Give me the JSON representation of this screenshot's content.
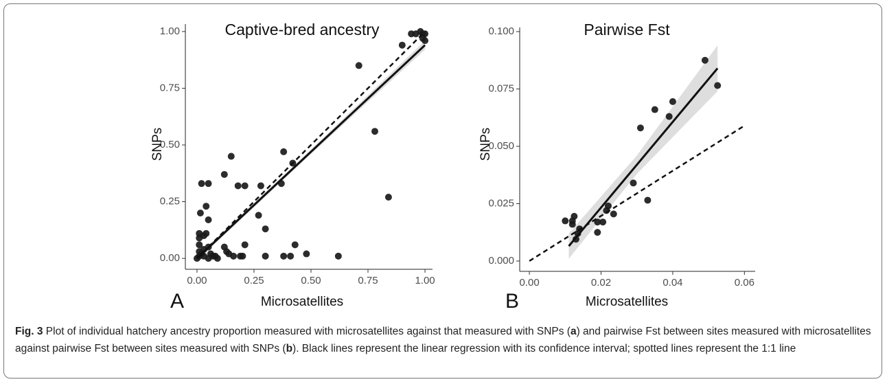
{
  "chart_data": [
    {
      "type": "scatter",
      "title": "Captive-bred ancestry",
      "panel": "A",
      "xlabel": "Microsatellites",
      "ylabel": "SNPs",
      "color": "#1a1a1a",
      "x": [
        0.0,
        0.01,
        0.01,
        0.01,
        0.01,
        0.015,
        0.02,
        0.03,
        0.03,
        0.04,
        0.04,
        0.05,
        0.05,
        0.05,
        0.06,
        0.07,
        0.08,
        0.12,
        0.12,
        0.14,
        0.15,
        0.16,
        0.18,
        0.19,
        0.21,
        0.21,
        0.27,
        0.28,
        0.3,
        0.3,
        0.37,
        0.38,
        0.38,
        0.41,
        0.42,
        0.43,
        0.48,
        0.62,
        0.71,
        0.78,
        0.84,
        0.9,
        0.94,
        0.96,
        0.98,
        0.99,
        1.0,
        0.99,
        1.0,
        0.02,
        0.01,
        0.03,
        0.05,
        0.09,
        0.13,
        0.2
      ],
      "y": [
        0.0,
        0.03,
        0.06,
        0.09,
        0.11,
        0.2,
        0.33,
        0.1,
        0.01,
        0.23,
        0.11,
        0.17,
        0.33,
        0.05,
        0.02,
        0.01,
        0.01,
        0.37,
        0.05,
        0.02,
        0.45,
        0.01,
        0.32,
        0.01,
        0.32,
        0.06,
        0.19,
        0.32,
        0.13,
        0.01,
        0.33,
        0.47,
        0.01,
        0.01,
        0.42,
        0.06,
        0.02,
        0.01,
        0.85,
        0.56,
        0.27,
        0.94,
        0.99,
        0.99,
        1.0,
        0.99,
        0.99,
        0.97,
        0.96,
        0.02,
        0.01,
        0.04,
        0.0,
        0.0,
        0.03,
        0.01
      ],
      "regression_line": {
        "x": [
          0,
          1
        ],
        "y": [
          0,
          0.94
        ]
      },
      "one_to_one_line": {
        "x": [
          0,
          1
        ],
        "y": [
          0,
          1
        ]
      },
      "ci_band": {
        "x": [
          0,
          0.5,
          1
        ],
        "lower": [
          -0.01,
          0.46,
          0.92
        ],
        "upper": [
          0.01,
          0.48,
          0.96
        ]
      },
      "xlim": [
        -0.051,
        1.033
      ],
      "ylim": [
        -0.048,
        1.033
      ],
      "xticks": [
        {
          "value": 0,
          "label": "0.00"
        },
        {
          "value": 0.25,
          "label": "0.25"
        },
        {
          "value": 0.5,
          "label": "0.50"
        },
        {
          "value": 0.75,
          "label": "0.75"
        },
        {
          "value": 1,
          "label": "1.00"
        }
      ],
      "yticks": [
        {
          "value": 0,
          "label": "0.00"
        },
        {
          "value": 0.25,
          "label": "0.25"
        },
        {
          "value": 0.5,
          "label": "0.50"
        },
        {
          "value": 0.75,
          "label": "0.75"
        },
        {
          "value": 1,
          "label": "1.00"
        }
      ]
    },
    {
      "type": "scatter",
      "title": "Pairwise Fst",
      "panel": "B",
      "xlabel": "Microsatellites",
      "ylabel": "SNPs",
      "color": "#1a1a1a",
      "x": [
        0.01,
        0.012,
        0.012,
        0.0125,
        0.013,
        0.0135,
        0.014,
        0.019,
        0.019,
        0.0205,
        0.0215,
        0.022,
        0.0235,
        0.029,
        0.031,
        0.033,
        0.035,
        0.039,
        0.04,
        0.049,
        0.0525
      ],
      "y": [
        0.0175,
        0.0175,
        0.016,
        0.0195,
        0.0095,
        0.012,
        0.014,
        0.0125,
        0.017,
        0.017,
        0.022,
        0.024,
        0.0205,
        0.034,
        0.058,
        0.0265,
        0.066,
        0.063,
        0.0695,
        0.0875,
        0.0765
      ],
      "regression_line": {
        "x": [
          0.011,
          0.0525
        ],
        "y": [
          0.0065,
          0.084
        ]
      },
      "one_to_one_line": {
        "x": [
          0,
          0.06
        ],
        "y": [
          0,
          0.059
        ]
      },
      "ci_band": {
        "x": [
          0.011,
          0.03,
          0.0525
        ],
        "lower": [
          0.001,
          0.038,
          0.074
        ],
        "upper": [
          0.012,
          0.046,
          0.094
        ]
      },
      "xlim": [
        -0.0027,
        0.063
      ],
      "ylim": [
        -0.0045,
        0.1018
      ],
      "xticks": [
        {
          "value": 0,
          "label": "0.00"
        },
        {
          "value": 0.02,
          "label": "0.02"
        },
        {
          "value": 0.04,
          "label": "0.04"
        },
        {
          "value": 0.06,
          "label": "0.06"
        }
      ],
      "yticks": [
        {
          "value": 0,
          "label": "0.000"
        },
        {
          "value": 0.025,
          "label": "0.025"
        },
        {
          "value": 0.05,
          "label": "0.050"
        },
        {
          "value": 0.075,
          "label": "0.075"
        },
        {
          "value": 0.1,
          "label": "0.100"
        }
      ]
    }
  ],
  "caption": {
    "label": "Fig. 3",
    "parts": [
      " Plot of individual hatchery ancestry proportion measured with microsatellites against that measured with SNPs (",
      "a",
      ") and pairwise Fst between sites measured with microsatellites against pairwise Fst between sites measured with SNPs (",
      "b",
      "). Black lines represent the linear regression with its confidence interval; spotted lines represent the 1:1 line"
    ]
  }
}
